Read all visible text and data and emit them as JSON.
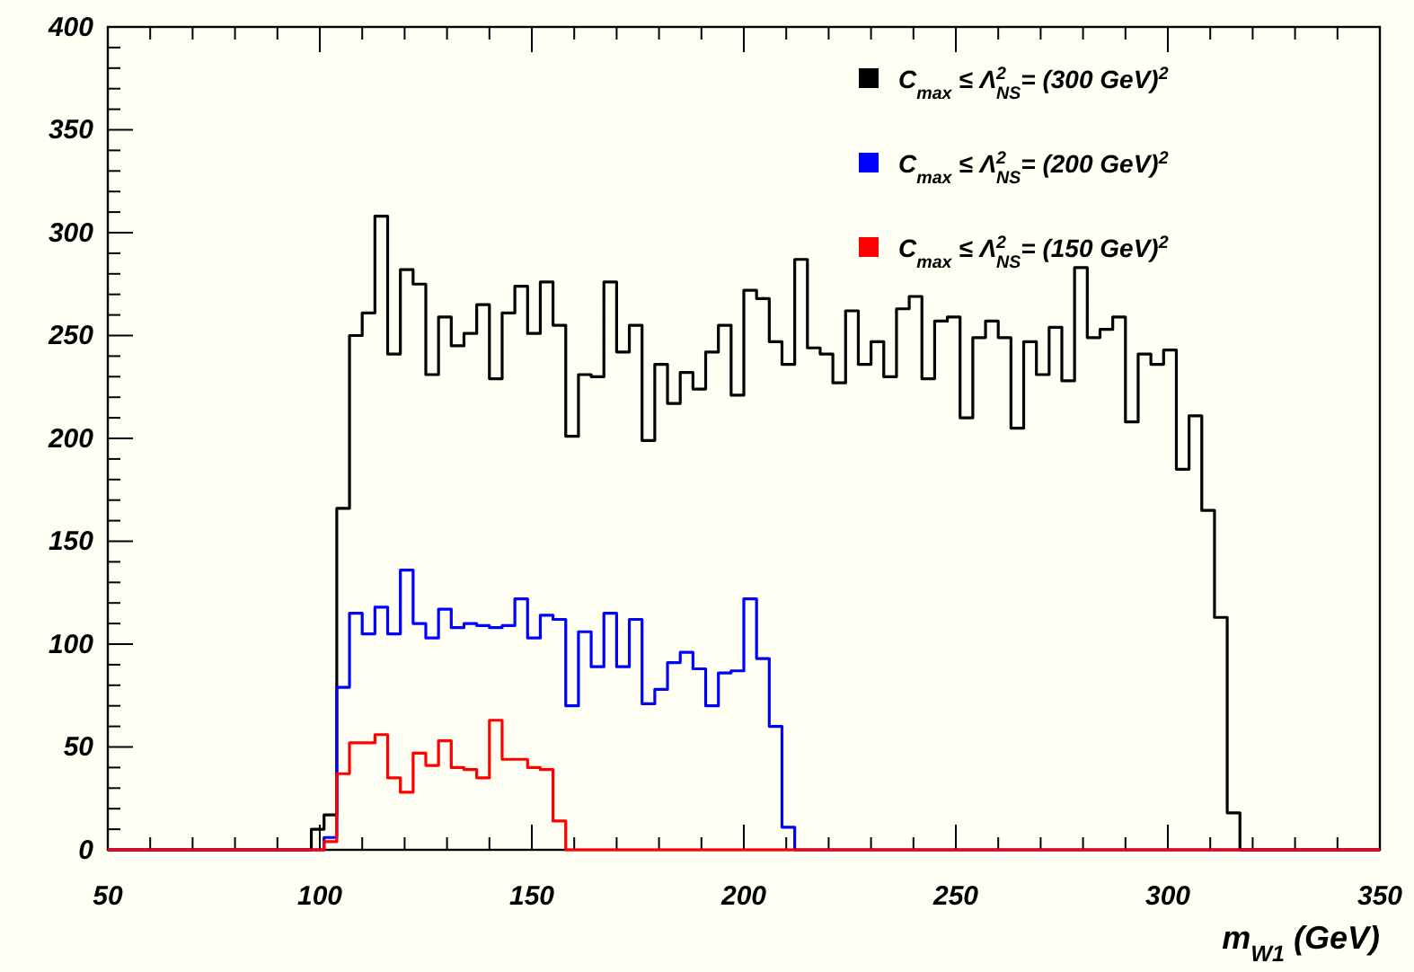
{
  "chart_data": {
    "type": "histogram",
    "xlabel": "m$_{W1}$ (GeV)",
    "bins": [
      50,
      53,
      56,
      59,
      62,
      65,
      68,
      71,
      74,
      77,
      80,
      83,
      86,
      89,
      92,
      95,
      98,
      101,
      104,
      107,
      110,
      113,
      116,
      119,
      122,
      125,
      128,
      131,
      134,
      137,
      140,
      143,
      146,
      149,
      152,
      155,
      158,
      161,
      164,
      167,
      170,
      173,
      176,
      179,
      182,
      185,
      188,
      191,
      194,
      197,
      200,
      203,
      206,
      209,
      212,
      215,
      218,
      221,
      224,
      227,
      230,
      233,
      236,
      239,
      242,
      245,
      248,
      251,
      254,
      257,
      260,
      263,
      266,
      269,
      272,
      275,
      278,
      281,
      284,
      287,
      290,
      293,
      296,
      299,
      302,
      305,
      308,
      311,
      314,
      317,
      320,
      323,
      326,
      329,
      332,
      335,
      338,
      341,
      344,
      347,
      350
    ],
    "series": [
      {
        "name": "C$_{max}$ ≤ Λ$^{2}$$_{NS}$= (300 GeV)$^{2}$",
        "color": "#000000",
        "values": [
          0,
          0,
          0,
          0,
          0,
          0,
          0,
          0,
          0,
          0,
          0,
          0,
          0,
          0,
          0,
          0,
          10,
          17,
          166,
          250,
          261,
          308,
          241,
          282,
          275,
          231,
          259,
          245,
          251,
          265,
          229,
          261,
          274,
          251,
          276,
          255,
          201,
          231,
          230,
          276,
          242,
          255,
          199,
          236,
          217,
          232,
          224,
          242,
          255,
          221,
          272,
          268,
          247,
          236,
          287,
          244,
          241,
          227,
          262,
          236,
          247,
          230,
          263,
          269,
          229,
          257,
          259,
          210,
          249,
          257,
          249,
          205,
          247,
          231,
          254,
          228,
          283,
          249,
          253,
          259,
          208,
          241,
          236,
          243,
          185,
          211,
          165,
          113,
          18,
          0,
          0,
          0,
          0,
          0,
          0,
          0,
          0,
          0,
          0,
          0
        ]
      },
      {
        "name": "C$_{max}$ ≤ Λ$^{2}$$_{NS}$= (200 GeV)$^{2}$",
        "color": "#0000ff",
        "values": [
          0,
          0,
          0,
          0,
          0,
          0,
          0,
          0,
          0,
          0,
          0,
          0,
          0,
          0,
          0,
          0,
          0,
          6,
          79,
          115,
          105,
          118,
          105,
          136,
          110,
          103,
          117,
          108,
          110,
          109,
          108,
          109,
          122,
          103,
          114,
          112,
          70,
          106,
          89,
          115,
          89,
          112,
          71,
          78,
          91,
          96,
          88,
          70,
          86,
          87,
          122,
          93,
          60,
          11,
          0,
          0,
          0,
          0,
          0,
          0,
          0,
          0,
          0,
          0,
          0,
          0,
          0,
          0,
          0,
          0,
          0,
          0,
          0,
          0,
          0,
          0,
          0,
          0,
          0,
          0,
          0,
          0,
          0,
          0,
          0,
          0,
          0,
          0,
          0,
          0,
          0,
          0,
          0,
          0,
          0,
          0,
          0,
          0,
          0,
          0
        ]
      },
      {
        "name": "C$_{max}$ ≤ Λ$^{2}$$_{NS}$= (150 GeV)$^{2}$",
        "color": "#ff0000",
        "values": [
          0,
          0,
          0,
          0,
          0,
          0,
          0,
          0,
          0,
          0,
          0,
          0,
          0,
          0,
          0,
          0,
          0,
          4,
          37,
          52,
          52,
          56,
          35,
          28,
          47,
          41,
          53,
          40,
          39,
          35,
          63,
          44,
          44,
          40,
          39,
          14,
          0,
          0,
          0,
          0,
          0,
          0,
          0,
          0,
          0,
          0,
          0,
          0,
          0,
          0,
          0,
          0,
          0,
          0,
          0,
          0,
          0,
          0,
          0,
          0,
          0,
          0,
          0,
          0,
          0,
          0,
          0,
          0,
          0,
          0,
          0,
          0,
          0,
          0,
          0,
          0,
          0,
          0,
          0,
          0,
          0,
          0,
          0,
          0,
          0,
          0,
          0,
          0,
          0,
          0,
          0,
          0,
          0,
          0,
          0,
          0,
          0,
          0,
          0,
          0
        ]
      }
    ],
    "xlim": [
      50,
      350
    ],
    "xticks": [
      50,
      100,
      150,
      200,
      250,
      300,
      350
    ],
    "ylim": [
      0,
      400
    ],
    "yticks": [
      0,
      50,
      100,
      150,
      200,
      250,
      300,
      350,
      400
    ],
    "legend": "top right",
    "grid": false
  }
}
